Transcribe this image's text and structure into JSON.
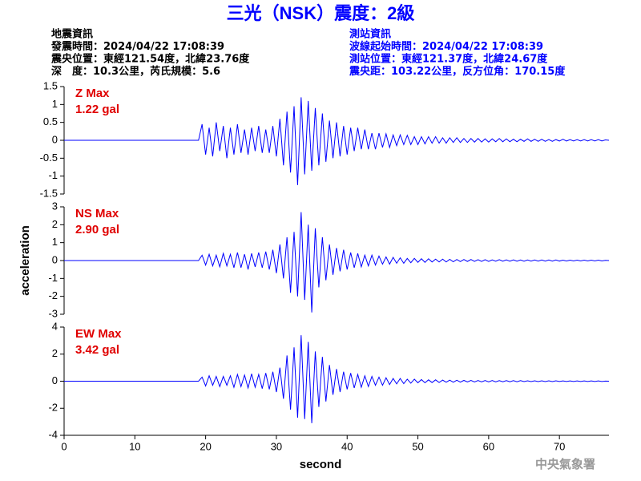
{
  "header": {
    "title": "三光（NSK）震度：2級",
    "left_info": [
      "地震資訊",
      "發震時間：2024/04/22 17:08:39",
      "震央位置：東經121.54度，北緯23.76度",
      "深　度：10.3公里，芮氏規模：5.6"
    ],
    "right_info": [
      "測站資訊",
      "波線起始時間：2024/04/22 17:08:39",
      "測站位置：東經121.37度，北緯24.67度",
      "震央距：103.22公里，反方位角：170.15度"
    ],
    "footer": "中央氣象署"
  },
  "chart_data": [
    {
      "type": "line",
      "annotations": [
        "Z Max",
        "1.22 gal"
      ],
      "annotation_color": "#e00000",
      "color": "#0000ff",
      "xlim": [
        0,
        77
      ],
      "ylim": [
        -1.5,
        1.5
      ],
      "yticks": [
        -1.5,
        -1,
        -0.5,
        0,
        0.5,
        1,
        1.5
      ],
      "x": [
        0,
        19,
        19.5,
        20,
        20.5,
        21,
        21.5,
        22,
        22.5,
        23,
        23.5,
        24,
        24.5,
        25,
        25.5,
        26,
        26.5,
        27,
        27.5,
        28,
        28.5,
        29,
        29.5,
        30,
        30.5,
        31,
        31.5,
        32,
        32.5,
        33,
        33.5,
        34,
        34.5,
        35,
        35.5,
        36,
        36.5,
        37,
        37.5,
        38,
        38.5,
        39,
        39.5,
        40,
        40.5,
        41,
        41.5,
        42,
        42.5,
        43,
        43.5,
        44,
        44.5,
        45,
        45.5,
        46,
        46.5,
        47,
        47.5,
        48,
        48.5,
        49,
        49.5,
        50,
        50.5,
        51,
        51.5,
        52,
        52.5,
        53,
        53.5,
        54,
        54.5,
        55,
        55.5,
        56,
        56.5,
        57,
        57.5,
        58,
        58.5,
        59,
        59.5,
        60,
        60.5,
        61,
        61.5,
        62,
        62.5,
        63,
        63.5,
        64,
        64.5,
        65,
        65.5,
        66,
        66.5,
        67,
        67.5,
        68,
        68.5,
        69,
        69.5,
        70,
        70.5,
        71,
        71.5,
        72,
        72.5,
        73,
        73.5,
        74,
        74.5,
        75,
        75.5,
        76,
        76.5,
        77
      ],
      "values": [
        0,
        0,
        0.45,
        -0.4,
        0.35,
        -0.45,
        0.5,
        -0.3,
        0.4,
        -0.5,
        0.35,
        -0.4,
        0.45,
        -0.35,
        0.3,
        -0.4,
        0.35,
        -0.3,
        0.4,
        -0.35,
        0.3,
        -0.35,
        0.4,
        -0.45,
        0.6,
        -0.7,
        0.8,
        -0.9,
        0.95,
        -1.25,
        1.2,
        -0.95,
        1.1,
        -0.85,
        0.9,
        -0.7,
        0.75,
        -0.6,
        0.55,
        -0.5,
        0.5,
        -0.45,
        0.4,
        -0.4,
        0.35,
        -0.3,
        0.35,
        -0.25,
        0.3,
        -0.25,
        0.2,
        -0.25,
        0.2,
        -0.2,
        0.18,
        -0.2,
        0.15,
        -0.15,
        0.15,
        -0.12,
        0.14,
        -0.12,
        0.1,
        -0.12,
        0.1,
        -0.1,
        0.1,
        -0.08,
        0.1,
        -0.08,
        0.07,
        -0.08,
        0.07,
        -0.06,
        0.07,
        -0.06,
        0.05,
        -0.06,
        0.05,
        -0.05,
        0.05,
        -0.05,
        0.04,
        -0.05,
        0.04,
        -0.04,
        0.05,
        -0.04,
        0.04,
        -0.04,
        0.03,
        -0.04,
        0.03,
        -0.03,
        0.04,
        -0.03,
        0.03,
        -0.03,
        0.03,
        -0.03,
        0.02,
        -0.03,
        0.02,
        -0.02,
        0.03,
        -0.02,
        0.02,
        -0.02,
        0.02,
        -0.02,
        0.02,
        -0.02,
        0.02,
        -0.02,
        0.02,
        -0.02,
        0.01,
        0
      ]
    },
    {
      "type": "line",
      "annotations": [
        "NS Max",
        "2.90 gal"
      ],
      "annotation_color": "#e00000",
      "color": "#0000ff",
      "y_label": "acceleration",
      "xlim": [
        0,
        77
      ],
      "ylim": [
        -3,
        3
      ],
      "yticks": [
        -3,
        -2,
        -1,
        0,
        1,
        2,
        3
      ],
      "x": [
        0,
        19,
        19.5,
        20,
        20.5,
        21,
        21.5,
        22,
        22.5,
        23,
        23.5,
        24,
        24.5,
        25,
        25.5,
        26,
        26.5,
        27,
        27.5,
        28,
        28.5,
        29,
        29.5,
        30,
        30.5,
        31,
        31.5,
        32,
        32.5,
        33,
        33.5,
        34,
        34.5,
        35,
        35.5,
        36,
        36.5,
        37,
        37.5,
        38,
        38.5,
        39,
        39.5,
        40,
        40.5,
        41,
        41.5,
        42,
        42.5,
        43,
        43.5,
        44,
        44.5,
        45,
        45.5,
        46,
        46.5,
        47,
        47.5,
        48,
        48.5,
        49,
        49.5,
        50,
        50.5,
        51,
        51.5,
        52,
        52.5,
        53,
        53.5,
        54,
        54.5,
        55,
        55.5,
        56,
        56.5,
        57,
        57.5,
        58,
        58.5,
        59,
        59.5,
        60,
        60.5,
        61,
        61.5,
        62,
        62.5,
        63,
        63.5,
        64,
        64.5,
        65,
        65.5,
        66,
        66.5,
        67,
        67.5,
        68,
        68.5,
        69,
        69.5,
        70,
        70.5,
        71,
        71.5,
        72,
        72.5,
        73,
        73.5,
        74,
        74.5,
        75,
        75.5,
        76,
        76.5,
        77
      ],
      "values": [
        0,
        0,
        0.3,
        -0.25,
        0.35,
        -0.3,
        0.3,
        -0.35,
        0.4,
        -0.3,
        0.35,
        -0.4,
        0.45,
        -0.4,
        0.35,
        -0.5,
        0.4,
        -0.35,
        0.45,
        -0.4,
        0.5,
        -0.5,
        0.6,
        -0.7,
        0.9,
        -1.0,
        1.3,
        -1.8,
        1.6,
        -2.0,
        2.7,
        -2.2,
        2.0,
        -2.9,
        1.8,
        -1.5,
        1.3,
        -1.1,
        0.9,
        -0.8,
        0.7,
        -0.6,
        0.6,
        -0.5,
        0.45,
        -0.4,
        0.4,
        -0.35,
        0.3,
        -0.3,
        0.3,
        -0.25,
        0.25,
        -0.2,
        0.2,
        -0.2,
        0.18,
        -0.15,
        0.15,
        -0.15,
        0.12,
        -0.12,
        0.12,
        -0.1,
        0.1,
        -0.1,
        0.1,
        -0.08,
        0.08,
        -0.08,
        0.08,
        -0.08,
        0.07,
        -0.07,
        0.06,
        -0.06,
        0.06,
        -0.05,
        0.06,
        -0.05,
        0.05,
        -0.05,
        0.05,
        -0.05,
        0.04,
        -0.04,
        0.05,
        -0.04,
        0.04,
        -0.04,
        0.04,
        -0.04,
        0.03,
        -0.04,
        0.03,
        -0.03,
        0.03,
        -0.03,
        0.03,
        -0.03,
        0.03,
        -0.03,
        0.03,
        -0.03,
        0.02,
        -0.03,
        0.02,
        -0.02,
        0.02,
        -0.02,
        0.02,
        -0.02,
        0.02,
        -0.02,
        0.02,
        -0.02,
        0.01,
        0
      ]
    },
    {
      "type": "line",
      "annotations": [
        "EW Max",
        "3.42 gal"
      ],
      "annotation_color": "#e00000",
      "color": "#0000ff",
      "x_label": "second",
      "xlim": [
        0,
        77
      ],
      "xticks": [
        0,
        10,
        20,
        30,
        40,
        50,
        60,
        70
      ],
      "ylim": [
        -4,
        4
      ],
      "yticks": [
        -4,
        -2,
        0,
        2,
        4
      ],
      "x": [
        0,
        19,
        19.5,
        20,
        20.5,
        21,
        21.5,
        22,
        22.5,
        23,
        23.5,
        24,
        24.5,
        25,
        25.5,
        26,
        26.5,
        27,
        27.5,
        28,
        28.5,
        29,
        29.5,
        30,
        30.5,
        31,
        31.5,
        32,
        32.5,
        33,
        33.5,
        34,
        34.5,
        35,
        35.5,
        36,
        36.5,
        37,
        37.5,
        38,
        38.5,
        39,
        39.5,
        40,
        40.5,
        41,
        41.5,
        42,
        42.5,
        43,
        43.5,
        44,
        44.5,
        45,
        45.5,
        46,
        46.5,
        47,
        47.5,
        48,
        48.5,
        49,
        49.5,
        50,
        50.5,
        51,
        51.5,
        52,
        52.5,
        53,
        53.5,
        54,
        54.5,
        55,
        55.5,
        56,
        56.5,
        57,
        57.5,
        58,
        58.5,
        59,
        59.5,
        60,
        60.5,
        61,
        61.5,
        62,
        62.5,
        63,
        63.5,
        64,
        64.5,
        65,
        65.5,
        66,
        66.5,
        67,
        67.5,
        68,
        68.5,
        69,
        69.5,
        70,
        70.5,
        71,
        71.5,
        72,
        72.5,
        73,
        73.5,
        74,
        74.5,
        75,
        75.5,
        76,
        76.5,
        77
      ],
      "values": [
        0,
        0,
        0.3,
        -0.35,
        0.4,
        -0.3,
        0.35,
        -0.4,
        0.35,
        -0.3,
        0.4,
        -0.45,
        0.5,
        -0.4,
        0.45,
        -0.5,
        0.55,
        -0.45,
        0.5,
        -0.55,
        0.6,
        -0.6,
        0.7,
        -0.8,
        1.0,
        -1.3,
        1.9,
        -2.1,
        2.5,
        -2.7,
        3.4,
        -2.8,
        2.9,
        -3.1,
        2.2,
        -1.9,
        1.8,
        -1.5,
        1.2,
        -1.0,
        0.9,
        -0.8,
        0.7,
        -0.6,
        0.6,
        -0.5,
        0.5,
        -0.45,
        0.4,
        -0.4,
        0.35,
        -0.3,
        0.3,
        -0.3,
        0.25,
        -0.25,
        0.2,
        -0.2,
        0.2,
        -0.18,
        0.15,
        -0.15,
        0.15,
        -0.12,
        0.12,
        -0.12,
        0.1,
        -0.1,
        0.1,
        -0.1,
        0.08,
        -0.08,
        0.08,
        -0.08,
        0.07,
        -0.07,
        0.06,
        -0.06,
        0.06,
        -0.06,
        0.05,
        -0.05,
        0.05,
        -0.05,
        0.05,
        -0.05,
        0.04,
        -0.04,
        0.04,
        -0.04,
        0.04,
        -0.04,
        0.04,
        -0.03,
        0.03,
        -0.03,
        0.03,
        -0.03,
        0.03,
        -0.03,
        0.03,
        -0.03,
        0.03,
        -0.02,
        0.02,
        -0.02,
        0.02,
        -0.02,
        0.02,
        -0.02,
        0.02,
        -0.02,
        0.02,
        -0.02,
        0.02,
        -0.02,
        0.01,
        0
      ]
    }
  ]
}
